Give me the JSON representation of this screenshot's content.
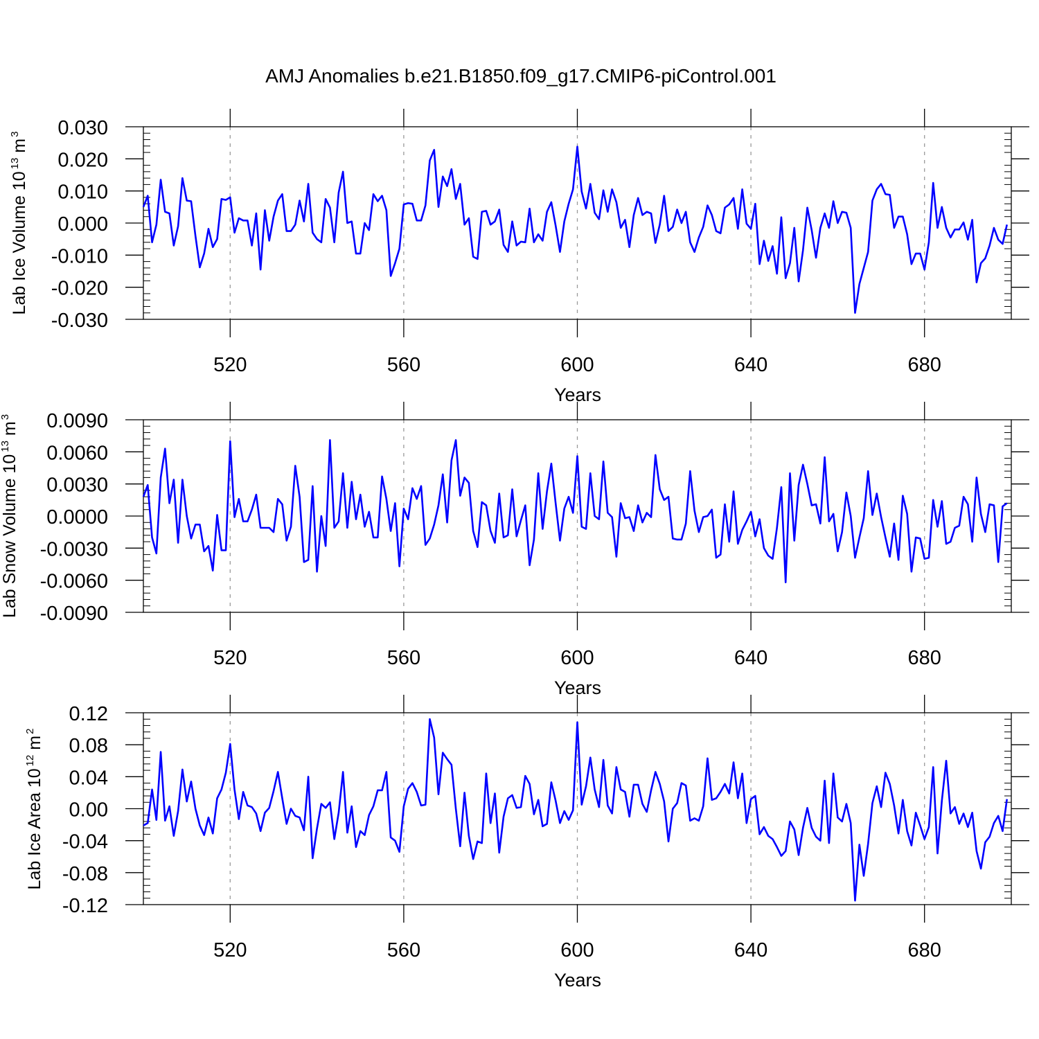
{
  "title": "AMJ Anomalies b.e21.B1850.f09_g17.CMIP6-piControl.001",
  "colors": {
    "line": "#0000ff",
    "axis": "#000000",
    "grid": "#999999"
  },
  "chart_data": [
    {
      "type": "line",
      "xlabel": "Years",
      "ylabel": "Lab Ice Volume 10",
      "ylabel_exponent": "13",
      "ylabel_unit": " m",
      "ylabel_unit_exponent": "3",
      "xlim": [
        500,
        700
      ],
      "ylim": [
        -0.03,
        0.03
      ],
      "x_ticks": [
        520,
        560,
        600,
        640,
        680
      ],
      "x_tick_labels": [
        "520",
        "560",
        "600",
        "640",
        "680"
      ],
      "y_ticks": [
        -0.03,
        -0.02,
        -0.01,
        0.0,
        0.01,
        0.02,
        0.03
      ],
      "y_tick_labels": [
        "-0.030",
        "-0.020",
        "-0.010",
        "0.000",
        "0.010",
        "0.020",
        "0.030"
      ],
      "x_start": 500,
      "values": [
        0.005,
        0.0085,
        -0.006,
        -0.0005,
        0.0135,
        0.0035,
        0.003,
        -0.007,
        -0.001,
        0.014,
        0.007,
        0.0068,
        -0.004,
        -0.0138,
        -0.0095,
        -0.0018,
        -0.0075,
        -0.005,
        0.0075,
        0.0072,
        0.008,
        -0.003,
        0.0015,
        0.0008,
        0.0008,
        -0.007,
        0.003,
        -0.0145,
        0.004,
        -0.0055,
        0.002,
        0.007,
        0.009,
        -0.0025,
        -0.0025,
        -0.0005,
        0.007,
        0.0005,
        0.0122,
        -0.003,
        -0.005,
        -0.006,
        0.0075,
        0.0048,
        -0.006,
        0.0095,
        0.016,
        0.0,
        0.0005,
        -0.0095,
        -0.0095,
        0.0,
        -0.0022,
        0.009,
        0.0068,
        0.0085,
        0.004,
        -0.0165,
        -0.0125,
        -0.008,
        0.0058,
        0.0062,
        0.006,
        0.0008,
        0.0008,
        0.0055,
        0.0195,
        0.0228,
        0.005,
        0.0145,
        0.0115,
        0.0168,
        0.0075,
        0.0122,
        -0.0005,
        0.0015,
        -0.0105,
        -0.0112,
        0.0035,
        0.0038,
        -0.0005,
        0.0005,
        0.0042,
        -0.0068,
        -0.009,
        0.0005,
        -0.007,
        -0.0058,
        -0.006,
        0.0045,
        -0.006,
        -0.0035,
        -0.0055,
        0.0035,
        0.0065,
        -0.0008,
        -0.009,
        0.0005,
        0.006,
        0.0105,
        0.0238,
        0.0098,
        0.0045,
        0.0122,
        0.0032,
        0.0012,
        0.0102,
        0.0035,
        0.0105,
        0.0065,
        -0.0015,
        0.001,
        -0.0075,
        0.0025,
        0.0078,
        0.0025,
        0.0035,
        0.003,
        -0.0062,
        -0.0005,
        0.0085,
        -0.0025,
        -0.0012,
        0.0042,
        0.0,
        0.0035,
        -0.006,
        -0.009,
        -0.0045,
        -0.0012,
        0.0055,
        0.0025,
        -0.0025,
        -0.0032,
        0.0048,
        0.0058,
        0.0078,
        -0.0018,
        0.0105,
        -0.0002,
        -0.0018,
        0.006,
        -0.0128,
        -0.0055,
        -0.0118,
        -0.0072,
        -0.0158,
        0.0018,
        -0.0172,
        -0.0125,
        -0.0015,
        -0.0182,
        -0.0085,
        0.0048,
        -0.0022,
        -0.0108,
        -0.0015,
        0.003,
        -0.0015,
        0.0068,
        0.0,
        0.0035,
        0.0032,
        -0.0015,
        -0.028,
        -0.019,
        -0.014,
        -0.009,
        0.007,
        0.0105,
        0.0122,
        0.009,
        0.0088,
        -0.0015,
        0.002,
        0.002,
        -0.0035,
        -0.0128,
        -0.0095,
        -0.0095,
        -0.0145,
        -0.006,
        0.0125,
        -0.0015,
        0.005,
        -0.0015,
        -0.0045,
        -0.002,
        -0.002,
        0.0002,
        -0.0052,
        0.001,
        -0.0185,
        -0.0125,
        -0.011,
        -0.007,
        -0.0015,
        -0.0052,
        -0.0065,
        -0.0005
      ]
    },
    {
      "type": "line",
      "xlabel": "Years",
      "ylabel": "Lab Snow Volume 10",
      "ylabel_exponent": "13",
      "ylabel_unit": " m",
      "ylabel_unit_exponent": "3",
      "xlim": [
        500,
        700
      ],
      "ylim": [
        -0.009,
        0.009
      ],
      "x_ticks": [
        520,
        560,
        600,
        640,
        680
      ],
      "x_tick_labels": [
        "520",
        "560",
        "600",
        "640",
        "680"
      ],
      "y_ticks": [
        -0.009,
        -0.006,
        -0.003,
        0.0,
        0.003,
        0.006,
        0.009
      ],
      "y_tick_labels": [
        "-0.0090",
        "-0.0060",
        "-0.0030",
        "0.0000",
        "0.0030",
        "0.0060",
        "0.0090"
      ],
      "x_start": 500,
      "values": [
        0.0018,
        0.0029,
        -0.002,
        -0.0035,
        0.0036,
        0.0063,
        0.0012,
        0.0034,
        -0.0025,
        0.0034,
        0.0,
        -0.0021,
        -0.0008,
        -0.0008,
        -0.0033,
        -0.0028,
        -0.0051,
        0.0001,
        -0.0032,
        -0.0032,
        0.007,
        -0.0001,
        0.0016,
        -0.0005,
        -0.0005,
        0.0006,
        0.002,
        -0.0011,
        -0.0011,
        -0.0011,
        -0.0015,
        0.0016,
        0.0011,
        -0.0023,
        -0.001,
        0.0047,
        0.0018,
        -0.0043,
        -0.0041,
        0.0028,
        -0.0052,
        0.0,
        -0.0028,
        0.0071,
        -0.0011,
        -0.0005,
        0.004,
        -0.0011,
        0.0032,
        -0.0003,
        0.002,
        -0.001,
        0.0004,
        -0.002,
        -0.002,
        0.0037,
        0.0016,
        -0.0014,
        0.0012,
        -0.0047,
        0.0007,
        -0.0003,
        0.0026,
        0.0016,
        0.0028,
        -0.0027,
        -0.0021,
        -0.0008,
        0.001,
        0.0039,
        -0.0006,
        0.0052,
        0.0071,
        0.0019,
        0.0036,
        0.0031,
        -0.0014,
        -0.0029,
        0.0013,
        0.001,
        -0.0014,
        -0.0025,
        0.0021,
        -0.002,
        -0.0018,
        0.0025,
        -0.0019,
        -0.0004,
        0.001,
        -0.0046,
        -0.0022,
        0.004,
        -0.0012,
        0.0023,
        0.0049,
        0.0012,
        -0.0023,
        0.0007,
        0.0018,
        0.0003,
        0.0056,
        -0.001,
        -0.0012,
        0.004,
        0.0,
        -0.0003,
        0.0051,
        0.0003,
        -0.0001,
        -0.0038,
        0.0012,
        -0.0002,
        -0.0001,
        -0.0014,
        0.001,
        -0.0006,
        0.0003,
        -0.0001,
        0.0057,
        0.0025,
        0.0015,
        0.0018,
        -0.0021,
        -0.0022,
        -0.0022,
        -0.0007,
        0.0042,
        0.0005,
        -0.0015,
        -0.0001,
        0.0,
        0.0006,
        -0.0039,
        -0.0036,
        0.0011,
        -0.0024,
        0.0023,
        -0.0026,
        -0.0013,
        -0.0005,
        0.0004,
        -0.0019,
        -0.0003,
        -0.003,
        -0.0037,
        -0.004,
        -0.0011,
        0.0027,
        -0.0062,
        0.004,
        -0.0023,
        0.0029,
        0.0048,
        0.003,
        0.001,
        0.0011,
        -0.0007,
        0.0055,
        -0.0005,
        0.0002,
        -0.0033,
        -0.0015,
        0.0022,
        0.0,
        -0.0039,
        -0.002,
        -0.0002,
        0.0042,
        0.0001,
        0.0021,
        -0.0001,
        -0.002,
        -0.0038,
        -0.0007,
        -0.0041,
        0.0019,
        0.0002,
        -0.0052,
        -0.002,
        -0.0021,
        -0.004,
        -0.0039,
        0.0015,
        -0.001,
        0.0014,
        -0.0026,
        -0.0024,
        -0.0011,
        -0.0009,
        0.0018,
        0.0011,
        -0.0024,
        0.0036,
        0.0002,
        -0.0015,
        0.0011,
        0.001,
        -0.0043,
        0.0009,
        0.0012
      ]
    },
    {
      "type": "line",
      "xlabel": "Years",
      "ylabel": "Lab Ice Area 10",
      "ylabel_exponent": "12",
      "ylabel_unit": " m",
      "ylabel_unit_exponent": "2",
      "xlim": [
        500,
        700
      ],
      "ylim": [
        -0.12,
        0.12
      ],
      "x_ticks": [
        520,
        560,
        600,
        640,
        680
      ],
      "x_tick_labels": [
        "520",
        "560",
        "600",
        "640",
        "680"
      ],
      "y_ticks": [
        -0.12,
        -0.08,
        -0.04,
        0.0,
        0.04,
        0.08,
        0.12
      ],
      "y_tick_labels": [
        "-0.12",
        "-0.08",
        "-0.04",
        "0.00",
        "0.04",
        "0.08",
        "0.12"
      ],
      "x_start": 500,
      "values": [
        -0.021,
        -0.018,
        0.024,
        -0.014,
        0.071,
        -0.015,
        0.003,
        -0.034,
        -0.003,
        0.049,
        0.009,
        0.034,
        0.0,
        -0.021,
        -0.033,
        -0.011,
        -0.031,
        0.013,
        0.024,
        0.045,
        0.081,
        0.024,
        -0.013,
        0.021,
        0.004,
        0.002,
        -0.006,
        -0.028,
        -0.005,
        0.001,
        0.022,
        0.046,
        0.013,
        -0.019,
        0.0,
        -0.009,
        -0.011,
        -0.027,
        0.04,
        -0.062,
        -0.025,
        0.006,
        0.001,
        0.008,
        -0.038,
        -0.005,
        0.046,
        -0.03,
        0.003,
        -0.048,
        -0.028,
        -0.033,
        -0.008,
        0.003,
        0.023,
        0.023,
        0.046,
        -0.036,
        -0.04,
        -0.054,
        0.003,
        0.025,
        0.032,
        0.021,
        0.004,
        0.005,
        0.112,
        0.089,
        0.018,
        0.07,
        0.062,
        0.055,
        0.0,
        -0.047,
        0.02,
        -0.034,
        -0.063,
        -0.041,
        -0.043,
        0.044,
        -0.018,
        0.019,
        -0.055,
        -0.01,
        0.013,
        0.017,
        0.001,
        0.002,
        0.041,
        0.031,
        -0.007,
        0.011,
        -0.022,
        -0.019,
        0.033,
        0.01,
        -0.018,
        -0.003,
        -0.014,
        -0.002,
        0.108,
        0.005,
        0.028,
        0.064,
        0.024,
        0.002,
        0.061,
        0.004,
        -0.006,
        0.052,
        0.024,
        0.021,
        -0.01,
        0.03,
        0.03,
        0.006,
        -0.004,
        0.023,
        0.046,
        0.031,
        0.009,
        -0.041,
        0.0,
        0.007,
        0.032,
        0.029,
        -0.015,
        -0.012,
        -0.015,
        0.003,
        0.063,
        0.011,
        0.013,
        0.021,
        0.031,
        0.019,
        0.058,
        0.013,
        0.044,
        -0.018,
        0.012,
        0.016,
        -0.032,
        -0.023,
        -0.034,
        -0.038,
        -0.048,
        -0.059,
        -0.053,
        -0.016,
        -0.026,
        -0.058,
        -0.024,
        0.001,
        -0.024,
        -0.035,
        -0.04,
        0.035,
        -0.043,
        0.044,
        -0.011,
        -0.016,
        0.006,
        -0.018,
        -0.115,
        -0.045,
        -0.084,
        -0.044,
        0.007,
        0.028,
        0.002,
        0.045,
        0.031,
        0.004,
        -0.031,
        0.011,
        -0.028,
        -0.046,
        -0.005,
        -0.021,
        -0.038,
        -0.023,
        0.052,
        -0.056,
        0.01,
        0.06,
        -0.006,
        0.002,
        -0.019,
        -0.006,
        -0.023,
        -0.005,
        -0.053,
        -0.075,
        -0.042,
        -0.035,
        -0.018,
        -0.009,
        -0.028,
        0.012
      ]
    }
  ]
}
